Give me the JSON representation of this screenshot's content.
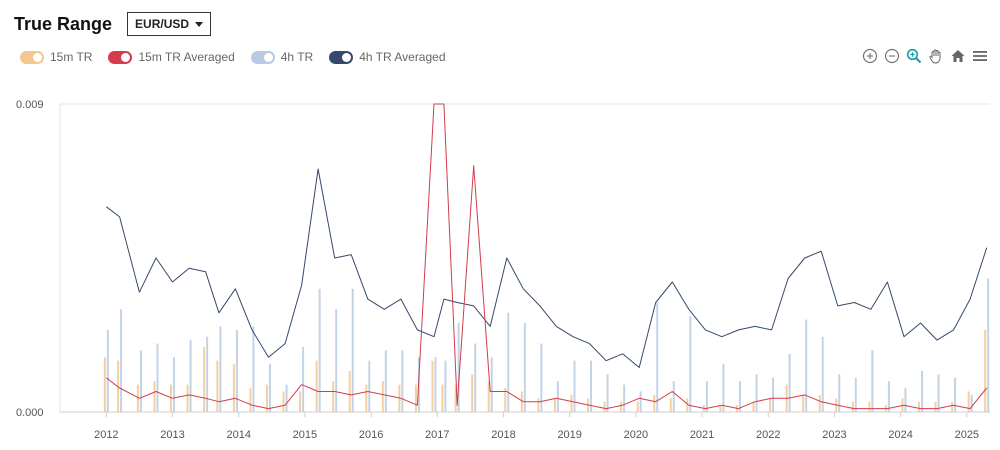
{
  "header": {
    "title": "True Range",
    "pair_selected": "EUR/USD"
  },
  "legend": [
    {
      "label": "15m TR",
      "color": "#f3c78e"
    },
    {
      "label": "15m TR Averaged",
      "color": "#d23c4c"
    },
    {
      "label": "4h TR",
      "color": "#b8cbe2"
    },
    {
      "label": "4h TR Averaged",
      "color": "#34496b"
    }
  ],
  "toolbar": [
    "zoom-in-icon",
    "zoom-out-icon",
    "zoom-selection-icon",
    "pan-icon",
    "home-icon",
    "menu-icon"
  ],
  "chart_data": {
    "type": "bar+line",
    "title": "True Range",
    "xlabel": "",
    "ylabel": "",
    "ylim": [
      0,
      0.009
    ],
    "y_tick_labels": [
      "0.000",
      "0.009"
    ],
    "x_range": [
      2011.3,
      2025.35
    ],
    "x_ticks": [
      2012,
      2013,
      2014,
      2015,
      2016,
      2017,
      2018,
      2019,
      2020,
      2021,
      2022,
      2023,
      2024,
      2025
    ],
    "x": [
      2012.0,
      2012.2,
      2012.5,
      2012.75,
      2013.0,
      2013.25,
      2013.5,
      2013.7,
      2013.95,
      2014.2,
      2014.45,
      2014.7,
      2014.95,
      2015.2,
      2015.45,
      2015.7,
      2015.95,
      2016.2,
      2016.45,
      2016.7,
      2016.95,
      2017.1,
      2017.3,
      2017.55,
      2017.8,
      2018.05,
      2018.3,
      2018.55,
      2018.8,
      2019.05,
      2019.3,
      2019.55,
      2019.8,
      2020.05,
      2020.3,
      2020.55,
      2020.8,
      2021.05,
      2021.3,
      2021.55,
      2021.8,
      2022.05,
      2022.3,
      2022.55,
      2022.8,
      2023.05,
      2023.3,
      2023.55,
      2023.8,
      2024.05,
      2024.3,
      2024.55,
      2024.8,
      2025.05,
      2025.3
    ],
    "series": [
      {
        "name": "15m TR",
        "kind": "bar",
        "color": "#f3c78e",
        "values": [
          0.0016,
          0.0015,
          0.0008,
          0.0009,
          0.0008,
          0.0008,
          0.0019,
          0.0015,
          0.0014,
          0.0007,
          0.0008,
          0.0006,
          0.0006,
          0.0015,
          0.0009,
          0.0012,
          0.0008,
          0.0009,
          0.0008,
          0.0008,
          0.0015,
          0.0008,
          0.0008,
          0.0011,
          0.0009,
          0.0007,
          0.0006,
          0.0004,
          0.0004,
          0.0005,
          0.0004,
          0.0003,
          0.0003,
          0.0003,
          0.0005,
          0.0004,
          0.0004,
          0.0002,
          0.0002,
          0.0002,
          0.0003,
          0.0004,
          0.0008,
          0.0005,
          0.0005,
          0.0004,
          0.0003,
          0.0003,
          0.0002,
          0.0004,
          0.0003,
          0.0003,
          0.0003,
          0.0006,
          0.0024
        ]
      },
      {
        "name": "4h TR",
        "kind": "bar",
        "color": "#b8cbe2",
        "values": [
          0.0024,
          0.003,
          0.0018,
          0.002,
          0.0016,
          0.0021,
          0.0022,
          0.0025,
          0.0024,
          0.0025,
          0.0014,
          0.0008,
          0.0019,
          0.0036,
          0.003,
          0.0036,
          0.0015,
          0.0018,
          0.0018,
          0.0016,
          0.0016,
          0.0015,
          0.0026,
          0.002,
          0.0016,
          0.0029,
          0.0026,
          0.002,
          0.0009,
          0.0015,
          0.0015,
          0.0011,
          0.0008,
          0.0006,
          0.0032,
          0.0009,
          0.0028,
          0.0009,
          0.0014,
          0.0009,
          0.0011,
          0.001,
          0.0017,
          0.0027,
          0.0022,
          0.0011,
          0.001,
          0.0018,
          0.0009,
          0.0007,
          0.0012,
          0.0011,
          0.001,
          0.0005,
          0.0039
        ]
      },
      {
        "name": "15m TR Averaged",
        "kind": "line",
        "color": "#d23c4c",
        "values": [
          0.001,
          0.0007,
          0.0004,
          0.0006,
          0.0004,
          0.0005,
          0.0004,
          0.0003,
          0.0004,
          0.0002,
          0.0001,
          0.0002,
          0.0008,
          0.0006,
          0.0006,
          0.0005,
          0.0006,
          0.0005,
          0.0004,
          0.0002,
          0.009,
          0.009,
          0.0002,
          0.0072,
          0.0006,
          0.0006,
          0.0003,
          0.0003,
          0.0004,
          0.0003,
          0.0002,
          0.0001,
          0.0002,
          0.0004,
          0.0003,
          0.0006,
          0.0002,
          0.0001,
          0.0002,
          0.0001,
          0.0003,
          0.0004,
          0.0004,
          0.0005,
          0.0003,
          0.0002,
          0.0001,
          0.0001,
          0.0001,
          0.0002,
          0.0001,
          0.0001,
          0.0002,
          0.0001,
          0.0007
        ]
      },
      {
        "name": "4h TR Averaged",
        "kind": "line",
        "color": "#34496b",
        "values": [
          0.006,
          0.0057,
          0.0035,
          0.0045,
          0.0038,
          0.0042,
          0.0041,
          0.0029,
          0.0036,
          0.0024,
          0.0016,
          0.002,
          0.0037,
          0.0071,
          0.0045,
          0.0046,
          0.0033,
          0.003,
          0.0033,
          0.0024,
          0.0022,
          0.0033,
          0.0032,
          0.0031,
          0.0025,
          0.0045,
          0.0036,
          0.0031,
          0.0025,
          0.0022,
          0.002,
          0.0015,
          0.0017,
          0.0013,
          0.0032,
          0.0038,
          0.003,
          0.0024,
          0.0022,
          0.0024,
          0.0025,
          0.0024,
          0.0039,
          0.0045,
          0.0047,
          0.0031,
          0.0032,
          0.003,
          0.0038,
          0.0022,
          0.0026,
          0.0021,
          0.0024,
          0.0033,
          0.0048
        ]
      }
    ]
  }
}
